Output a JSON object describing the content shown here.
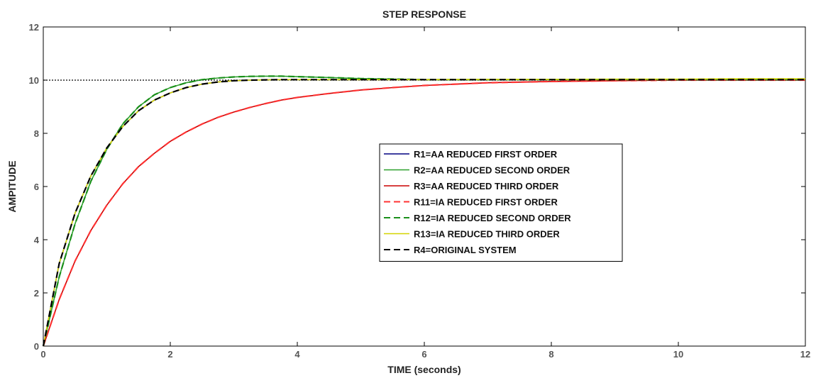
{
  "chart_data": {
    "type": "line",
    "title": "STEP RESPONSE",
    "xlabel": "TIME (seconds)",
    "ylabel": "AMPITUDE",
    "xlim": [
      0,
      12
    ],
    "ylim": [
      0,
      12
    ],
    "x_ticks": [
      0,
      2,
      4,
      6,
      8,
      10,
      12
    ],
    "y_ticks": [
      0,
      2,
      4,
      6,
      8,
      10,
      12
    ],
    "grid": false,
    "legend_position": "center-right",
    "reference_line": {
      "y": 10,
      "style": "dotted",
      "color": "#000000"
    },
    "x": [
      0,
      0.25,
      0.5,
      0.75,
      1,
      1.25,
      1.5,
      1.75,
      2,
      2.25,
      2.5,
      2.75,
      3,
      3.25,
      3.5,
      3.75,
      4,
      4.5,
      5,
      5.5,
      6,
      7,
      8,
      9,
      10,
      11,
      12
    ],
    "series": [
      {
        "name": "R1=AA REDUCED FIRST ORDER",
        "color": "#000080",
        "dash": "solid",
        "values": [
          0,
          3.1,
          5.0,
          6.4,
          7.45,
          8.25,
          8.85,
          9.25,
          9.52,
          9.72,
          9.85,
          9.93,
          9.98,
          10.0,
          10.01,
          10.02,
          10.02,
          10.02,
          10.02,
          10.02,
          10.02,
          10.02,
          10.02,
          10.02,
          10.02,
          10.02,
          10.02
        ]
      },
      {
        "name": "R2=AA REDUCED SECOND ORDER",
        "color": "#2ca02c",
        "dash": "solid",
        "values": [
          0,
          2.6,
          4.6,
          6.2,
          7.4,
          8.35,
          9.0,
          9.45,
          9.72,
          9.9,
          10.02,
          10.08,
          10.12,
          10.14,
          10.15,
          10.15,
          10.13,
          10.1,
          10.06,
          10.04,
          10.02,
          10.02,
          10.02,
          10.02,
          10.02,
          10.02,
          10.02
        ]
      },
      {
        "name": "R3=AA REDUCED THIRD ORDER",
        "color": "#cc0000",
        "dash": "solid",
        "values": [
          0,
          1.75,
          3.2,
          4.35,
          5.3,
          6.1,
          6.75,
          7.25,
          7.7,
          8.05,
          8.35,
          8.6,
          8.8,
          8.97,
          9.12,
          9.25,
          9.35,
          9.5,
          9.63,
          9.72,
          9.8,
          9.9,
          9.95,
          9.98,
          10.0,
          10.0,
          10.0
        ]
      },
      {
        "name": "R11=IA REDUCED FIRST ORDER",
        "color": "#ff3333",
        "dash": "dashed",
        "values": [
          0,
          1.75,
          3.2,
          4.35,
          5.3,
          6.1,
          6.75,
          7.25,
          7.7,
          8.05,
          8.35,
          8.6,
          8.8,
          8.97,
          9.12,
          9.25,
          9.35,
          9.5,
          9.63,
          9.72,
          9.8,
          9.9,
          9.95,
          9.98,
          10.0,
          10.0,
          10.0
        ]
      },
      {
        "name": "R12=IA REDUCED SECOND ORDER",
        "color": "#1a8f1a",
        "dash": "dashed",
        "values": [
          0,
          2.6,
          4.6,
          6.2,
          7.4,
          8.35,
          9.0,
          9.45,
          9.72,
          9.9,
          10.02,
          10.08,
          10.12,
          10.14,
          10.15,
          10.15,
          10.13,
          10.1,
          10.06,
          10.04,
          10.02,
          10.02,
          10.02,
          10.02,
          10.02,
          10.02,
          10.02
        ]
      },
      {
        "name": "R13=IA REDUCED THIRD ORDER",
        "color": "#d4d400",
        "dash": "solid",
        "values": [
          0,
          3.1,
          5.0,
          6.4,
          7.45,
          8.25,
          8.85,
          9.25,
          9.52,
          9.72,
          9.85,
          9.93,
          9.98,
          10.0,
          10.01,
          10.02,
          10.02,
          10.02,
          10.02,
          10.02,
          10.02,
          10.03,
          10.03,
          10.04,
          10.04,
          10.05,
          10.05
        ]
      },
      {
        "name": "R4=ORIGINAL SYSTEM",
        "color": "#000000",
        "dash": "dashed",
        "values": [
          0,
          3.1,
          5.0,
          6.4,
          7.45,
          8.25,
          8.85,
          9.25,
          9.52,
          9.72,
          9.85,
          9.93,
          9.98,
          10.0,
          10.01,
          10.02,
          10.02,
          10.02,
          10.02,
          10.02,
          10.02,
          10.02,
          10.02,
          10.02,
          10.02,
          10.02,
          10.02
        ]
      }
    ]
  }
}
